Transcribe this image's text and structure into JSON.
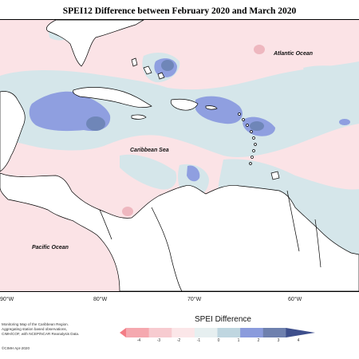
{
  "title": "SPEI12 Difference between February 2020 and March 2020",
  "map": {
    "ocean_labels": {
      "atlantic": "Atlantic Ocean",
      "caribbean": "Caribbean Sea",
      "pacific": "Pacific Ocean"
    },
    "longitude_labels": [
      "90°W",
      "80°W",
      "70°W",
      "60°W"
    ],
    "colors": {
      "land": "#ffffff",
      "coast": "#000000",
      "pos_light": "#d5e6ea",
      "pos_mid": "#8f9fe0",
      "pos_dark": "#6f86b8",
      "neg_light": "#fbe3e6",
      "neg_mid": "#eeb7bf"
    }
  },
  "legend": {
    "title": "SPEI Difference",
    "ticks": [
      "-4",
      "-3",
      "-2",
      "-1",
      "0",
      "1",
      "2",
      "3",
      "4"
    ],
    "colors": [
      "#f37c85",
      "#f5a8af",
      "#f7cbd0",
      "#fbe6e8",
      "#e6eff0",
      "#bfd6e0",
      "#8a9bdc",
      "#6e80ae",
      "#3e4f8c"
    ]
  },
  "credits": {
    "line1": "Monitoring Map of the Caribbean Region.",
    "line2": "Aggregating station based observations,",
    "line3": "CIMH/COF, with NCEP/NCAR Reanalysis Data.",
    "line4": "©CIMH Apr-2020"
  }
}
